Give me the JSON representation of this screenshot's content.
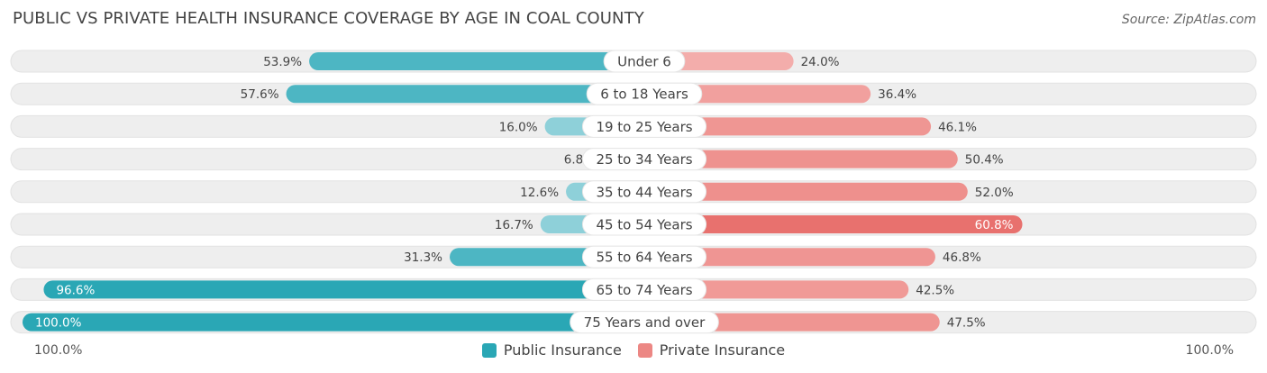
{
  "title": "PUBLIC VS PRIVATE HEALTH INSURANCE COVERAGE BY AGE IN COAL COUNTY",
  "source": "Source: ZipAtlas.com",
  "colors": {
    "public": "#4db6c3",
    "public_light": "#8ed0d9",
    "public_dark": "#2aa7b5",
    "private": "#ec8784",
    "private_light": "#f4b1af",
    "private_dark": "#e8716e",
    "track": "#eeeeee"
  },
  "legend": {
    "public_label": "Public Insurance",
    "private_label": "Private Insurance"
  },
  "axis": {
    "left_label": "100.0%",
    "right_label": "100.0%"
  },
  "chart_data": {
    "type": "bar",
    "orientation": "horizontal-diverging",
    "title": "PUBLIC VS PRIVATE HEALTH INSURANCE COVERAGE BY AGE IN COAL COUNTY",
    "categories": [
      "Under 6",
      "6 to 18 Years",
      "19 to 25 Years",
      "25 to 34 Years",
      "35 to 44 Years",
      "45 to 54 Years",
      "55 to 64 Years",
      "65 to 74 Years",
      "75 Years and over"
    ],
    "series": [
      {
        "name": "Public Insurance",
        "values": [
          53.9,
          57.6,
          16.0,
          6.8,
          12.6,
          16.7,
          31.3,
          96.6,
          100.0
        ],
        "labels": [
          "53.9%",
          "57.6%",
          "16.0%",
          "6.8%",
          "12.6%",
          "16.7%",
          "31.3%",
          "96.6%",
          "100.0%"
        ]
      },
      {
        "name": "Private Insurance",
        "values": [
          24.0,
          36.4,
          46.1,
          50.4,
          52.0,
          60.8,
          46.8,
          42.5,
          47.5
        ],
        "labels": [
          "24.0%",
          "36.4%",
          "46.1%",
          "50.4%",
          "52.0%",
          "60.8%",
          "46.8%",
          "42.5%",
          "47.5%"
        ]
      }
    ],
    "xlim": [
      0,
      100
    ],
    "legend_position": "bottom-center"
  }
}
